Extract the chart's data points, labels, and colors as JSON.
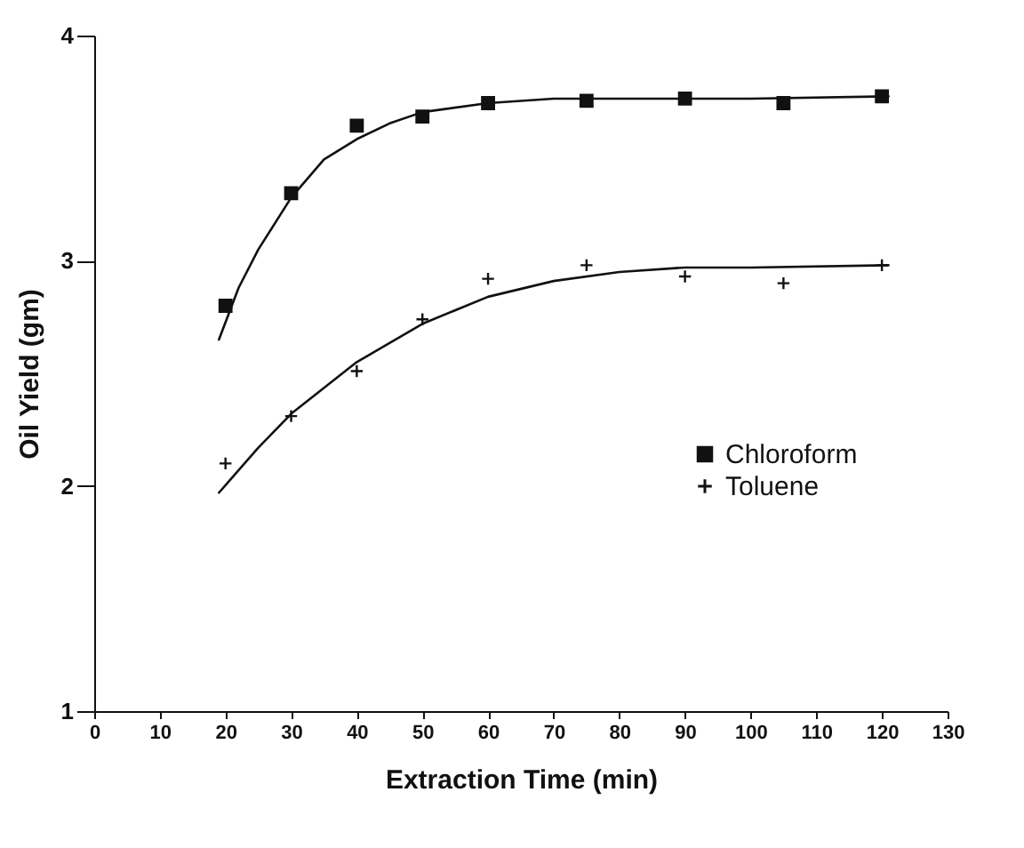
{
  "chart_data": {
    "type": "scatter",
    "xlabel": "Extraction Time (min)",
    "ylabel": "Oil Yield (gm)",
    "xlim": [
      0,
      130
    ],
    "xticks": [
      0,
      10,
      20,
      30,
      40,
      50,
      60,
      70,
      80,
      90,
      100,
      110,
      120,
      130
    ],
    "ylim": [
      1,
      4
    ],
    "yticks": [
      1,
      2,
      3,
      4
    ],
    "grid": false,
    "legend": "right",
    "series": [
      {
        "name": "Chloroform",
        "type": "scatter",
        "marker": "square",
        "color": "#111111",
        "x": [
          20,
          30,
          40,
          50,
          60,
          75,
          90,
          105,
          120
        ],
        "values": [
          2.8,
          3.3,
          3.6,
          3.64,
          3.7,
          3.71,
          3.72,
          3.7,
          3.73
        ]
      },
      {
        "name": "Toluene",
        "type": "scatter",
        "marker": "cross",
        "color": "#111111",
        "x": [
          20,
          30,
          40,
          50,
          60,
          75,
          90,
          105,
          120
        ],
        "values": [
          2.1,
          2.31,
          2.51,
          2.74,
          2.92,
          2.98,
          2.93,
          2.9,
          2.98
        ]
      },
      {
        "type": "line",
        "marker": "none",
        "color": "#111111",
        "x": [
          19,
          22,
          25,
          30,
          35,
          40,
          45,
          50,
          60,
          70,
          80,
          100,
          121
        ],
        "values": [
          2.65,
          2.88,
          3.05,
          3.28,
          3.45,
          3.54,
          3.61,
          3.66,
          3.7,
          3.72,
          3.72,
          3.72,
          3.73
        ]
      },
      {
        "type": "line",
        "marker": "none",
        "color": "#111111",
        "x": [
          19,
          25,
          30,
          40,
          50,
          60,
          70,
          80,
          90,
          100,
          121
        ],
        "values": [
          1.97,
          2.17,
          2.32,
          2.55,
          2.72,
          2.84,
          2.91,
          2.95,
          2.97,
          2.97,
          2.98
        ]
      }
    ]
  }
}
